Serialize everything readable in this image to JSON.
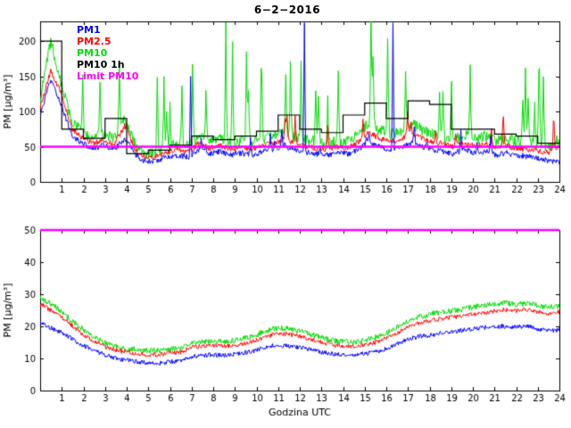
{
  "figure": {
    "background": "#ffffff"
  },
  "chart_data": [
    {
      "type": "line",
      "title": "6−2−2016",
      "xlabel": "",
      "ylabel": "PM [µg/m³]",
      "xlim": [
        0,
        24
      ],
      "ylim": [
        0,
        228
      ],
      "xticks": [
        1,
        2,
        3,
        4,
        5,
        6,
        7,
        8,
        9,
        10,
        11,
        12,
        13,
        14,
        15,
        16,
        17,
        18,
        19,
        20,
        21,
        22,
        23,
        24
      ],
      "yticks": [
        0,
        50,
        100,
        150,
        200
      ],
      "grid": false,
      "legend_position": "top-left-inside",
      "series": [
        {
          "name": "PM1",
          "color": "#0000ff",
          "noise": 4,
          "events": [
            [
              6.95,
              150
            ],
            [
              12.2,
              226
            ],
            [
              16.3,
              226
            ]
          ],
          "spikes": {
            "prob": 0.02,
            "max": 30,
            "from": 6
          },
          "y": [
            95,
            145,
            110,
            65,
            55,
            47,
            52,
            46,
            62,
            38,
            28,
            30,
            36,
            38,
            35,
            46,
            40,
            43,
            38,
            41,
            38,
            43,
            46,
            50,
            46,
            42,
            40,
            38,
            41,
            40,
            46,
            56,
            50,
            46,
            48,
            56,
            50,
            46,
            43,
            40,
            46,
            41,
            43,
            38,
            41,
            38,
            36,
            33,
            30,
            28
          ]
        },
        {
          "name": "PM2.5",
          "color": "#ff0000",
          "noise": 4,
          "spikes": {
            "prob": 0.03,
            "max": 45,
            "from": 6
          },
          "y": [
            105,
            158,
            125,
            75,
            62,
            55,
            60,
            54,
            80,
            45,
            33,
            36,
            42,
            46,
            42,
            55,
            48,
            52,
            46,
            50,
            46,
            52,
            55,
            60,
            55,
            51,
            48,
            46,
            50,
            48,
            56,
            70,
            62,
            57,
            60,
            70,
            62,
            57,
            54,
            50,
            56,
            51,
            54,
            48,
            51,
            48,
            46,
            44,
            42,
            50
          ]
        },
        {
          "name": "PM10",
          "color": "#00dd00",
          "noise": 8,
          "spikes": {
            "prob": 0.055,
            "max": 175,
            "from": 5
          },
          "y": [
            115,
            200,
            140,
            85,
            70,
            62,
            68,
            61,
            90,
            52,
            38,
            42,
            48,
            54,
            50,
            64,
            57,
            61,
            54,
            59,
            55,
            61,
            65,
            71,
            65,
            60,
            57,
            54,
            58,
            57,
            66,
            84,
            74,
            69,
            71,
            84,
            74,
            69,
            65,
            60,
            67,
            61,
            65,
            58,
            61,
            58,
            56,
            54,
            52,
            60
          ]
        },
        {
          "name": "PM10 1h",
          "color": "#000000",
          "step_hourly": [
            200,
            75,
            62,
            90,
            40,
            45,
            52,
            65,
            60,
            65,
            72,
            95,
            75,
            70,
            95,
            112,
            90,
            115,
            110,
            75,
            75,
            68,
            65,
            55
          ]
        },
        {
          "name": "Limit PM10",
          "color": "#ff00ff",
          "const": 50,
          "width": 2.5
        }
      ]
    },
    {
      "type": "line",
      "title": "",
      "xlabel": "Godzina UTC",
      "ylabel": "PM [µg/m³]",
      "xlim": [
        0,
        24
      ],
      "ylim": [
        0,
        50
      ],
      "xticks": [
        1,
        2,
        3,
        4,
        5,
        6,
        7,
        8,
        9,
        10,
        11,
        12,
        13,
        14,
        15,
        16,
        17,
        18,
        19,
        20,
        21,
        22,
        23,
        24
      ],
      "yticks": [
        0,
        10,
        20,
        30,
        40,
        50
      ],
      "grid": false,
      "series": [
        {
          "name": "PM1",
          "color": "#0000ff",
          "noise": 0.7,
          "y": [
            21,
            19.5,
            18,
            16,
            14,
            12.5,
            11,
            10,
            9.5,
            9,
            8.7,
            8.6,
            9,
            9.2,
            10.5,
            11,
            11.2,
            11,
            11.3,
            11.8,
            12.5,
            13.8,
            14,
            13.8,
            13.5,
            12.8,
            12,
            11.5,
            11.2,
            11,
            11.5,
            12,
            13,
            14.5,
            16,
            16.8,
            17.2,
            17.8,
            18.2,
            18.8,
            19.2,
            19.6,
            20,
            20,
            19.8,
            20,
            19.3,
            18.6,
            19
          ]
        },
        {
          "name": "PM2.5",
          "color": "#ff0000",
          "noise": 0.7,
          "y": [
            27,
            25,
            23,
            20,
            17.5,
            15.5,
            13.5,
            12.5,
            12,
            11.5,
            11.2,
            11.2,
            11.8,
            12,
            13.5,
            13.8,
            14,
            13.8,
            14,
            14.8,
            15.8,
            17,
            17.8,
            17.5,
            16.8,
            16,
            15,
            14.2,
            13.8,
            13.5,
            14.2,
            15,
            16.2,
            18,
            19.8,
            21,
            21.8,
            22.3,
            22.8,
            23.3,
            23.8,
            24.2,
            24.8,
            25.2,
            24.8,
            25.2,
            24.5,
            23.8,
            24.5
          ]
        },
        {
          "name": "PM10",
          "color": "#00dd00",
          "noise": 0.9,
          "y": [
            29,
            27,
            24.5,
            21.5,
            19,
            16.8,
            14.8,
            13.8,
            13.2,
            12.8,
            12.5,
            12.5,
            13,
            13.3,
            15,
            15.3,
            15.5,
            15.2,
            15.5,
            16.3,
            17.3,
            18.8,
            19.5,
            19.2,
            18.5,
            17.5,
            16.5,
            15.6,
            15.2,
            15,
            15.8,
            16.5,
            17.8,
            19.8,
            21.8,
            23,
            23.8,
            24.3,
            24.8,
            25.3,
            26,
            26.4,
            27,
            27.3,
            26.8,
            27.3,
            26.5,
            25.8,
            26.5
          ]
        },
        {
          "name": "Limit PM10",
          "color": "#ff00ff",
          "const": 50,
          "width": 2.5
        }
      ]
    }
  ]
}
